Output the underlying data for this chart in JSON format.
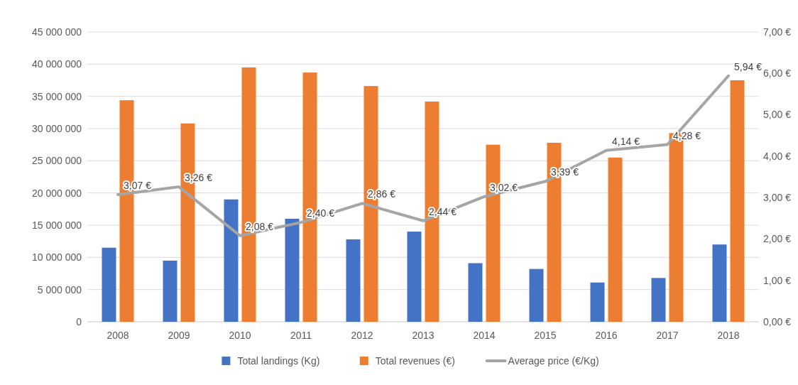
{
  "chart_data": {
    "type": "bar",
    "categories": [
      "2008",
      "2009",
      "2010",
      "2011",
      "2012",
      "2013",
      "2014",
      "2015",
      "2016",
      "2017",
      "2018"
    ],
    "series": [
      {
        "name": "Total landings (Kg)",
        "color": "#4472c4",
        "values": [
          11500000,
          9500000,
          19000000,
          16000000,
          12800000,
          14000000,
          9100000,
          8200000,
          6100000,
          6800000,
          12000000
        ]
      },
      {
        "name": "Total revenues (€)",
        "color": "#ed7d31",
        "values": [
          34400000,
          30800000,
          39500000,
          38700000,
          36600000,
          34200000,
          27500000,
          27800000,
          25500000,
          29300000,
          37500000
        ]
      },
      {
        "name": "Average price (€/Kg)",
        "type": "line",
        "axis": "y2",
        "color": "#a5a5a5",
        "values": [
          3.07,
          3.26,
          2.08,
          2.4,
          2.86,
          2.44,
          3.02,
          3.39,
          4.14,
          4.28,
          5.94
        ],
        "value_labels": [
          "3,07 €",
          "3,26 €",
          "2,08 €",
          "2,40 €",
          "2,86 €",
          "2,44 €",
          "3,02 €",
          "3,39 €",
          "4,14 €",
          "4,28 €",
          "5,94 €"
        ]
      }
    ],
    "ylim": [
      0,
      45000000
    ],
    "yticks": [
      {
        "value": 0,
        "label": "0"
      },
      {
        "value": 5000000,
        "label": "5 000 000"
      },
      {
        "value": 10000000,
        "label": "10 000 000"
      },
      {
        "value": 15000000,
        "label": "15 000 000"
      },
      {
        "value": 20000000,
        "label": "20 000 000"
      },
      {
        "value": 25000000,
        "label": "25 000 000"
      },
      {
        "value": 30000000,
        "label": "30 000 000"
      },
      {
        "value": 35000000,
        "label": "35 000 000"
      },
      {
        "value": 40000000,
        "label": "40 000 000"
      },
      {
        "value": 45000000,
        "label": "45 000 000"
      }
    ],
    "y2lim": [
      0,
      7
    ],
    "y2ticks": [
      {
        "value": 0,
        "label": "0,00 €"
      },
      {
        "value": 1,
        "label": "1,00 €"
      },
      {
        "value": 2,
        "label": "2,00 €"
      },
      {
        "value": 3,
        "label": "3,00 €"
      },
      {
        "value": 4,
        "label": "4,00 €"
      },
      {
        "value": 5,
        "label": "5,00 €"
      },
      {
        "value": 6,
        "label": "6,00 €"
      },
      {
        "value": 7,
        "label": "7,00 €"
      }
    ],
    "grid": "y",
    "legend": "bottom",
    "marker": "none",
    "line_style": "solid"
  }
}
